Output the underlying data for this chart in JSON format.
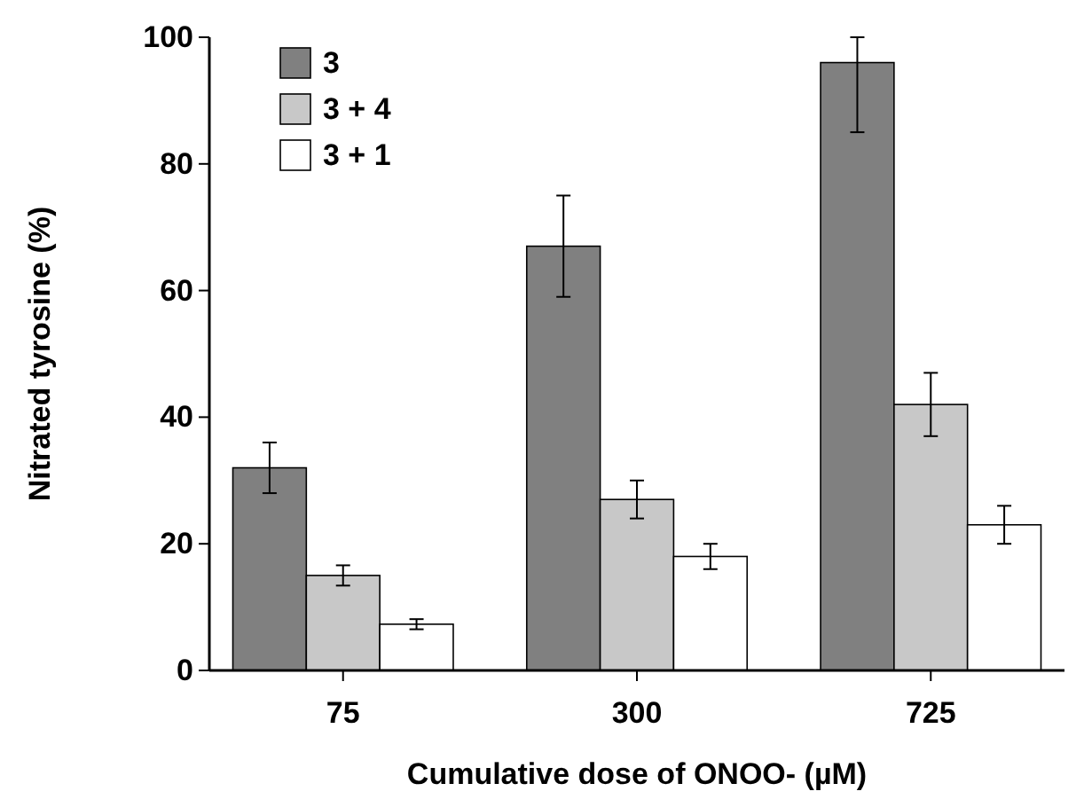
{
  "chart_data": {
    "type": "bar",
    "xlabel": "Cumulative dose of ONOO- (µM)",
    "ylabel": "Nitrated tyrosine (%)",
    "categories": [
      "75",
      "300",
      "725"
    ],
    "series": [
      {
        "name": "3",
        "color": "#808080",
        "values": [
          32,
          67,
          96
        ],
        "errors": [
          4,
          8,
          [
            85,
            100
          ]
        ]
      },
      {
        "name": "3 + 4",
        "color": "#c8c8c8",
        "values": [
          15,
          27,
          42
        ],
        "errors": [
          1.6,
          3,
          5
        ]
      },
      {
        "name": "3 + 1",
        "color": "#ffffff",
        "values": [
          7.3,
          18,
          23
        ],
        "errors": [
          0.8,
          2,
          3
        ]
      }
    ],
    "ylim": [
      0,
      100
    ],
    "yticks": [
      0,
      20,
      40,
      60,
      80,
      100
    ],
    "legend": "top left",
    "grid": false
  }
}
